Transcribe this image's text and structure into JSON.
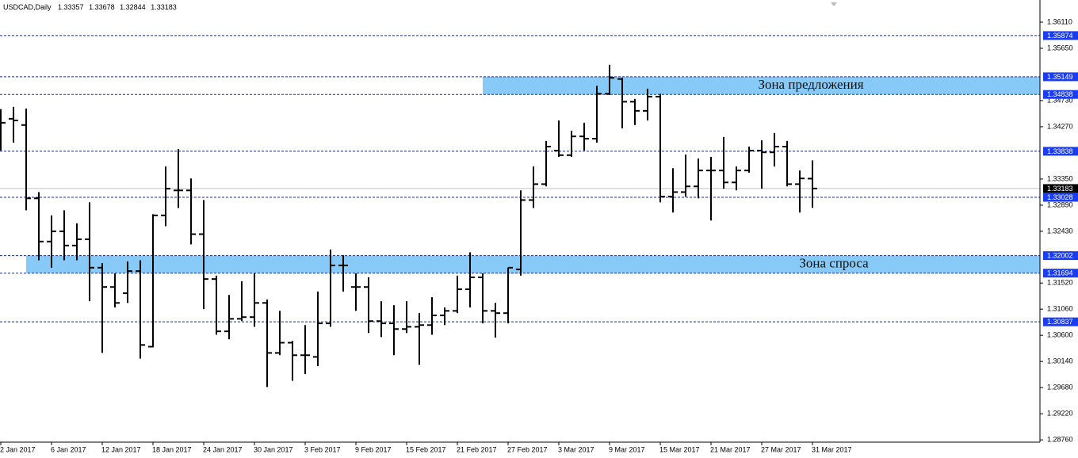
{
  "chart_data": {
    "type": "ohlc",
    "title": "USDCAD,Daily",
    "categories": [
      "2 Jan 2017",
      null,
      null,
      null,
      "6 Jan 2017",
      null,
      null,
      null,
      "12 Jan 2017",
      null,
      null,
      null,
      "18 Jan 2017",
      null,
      null,
      null,
      "24 Jan 2017",
      null,
      null,
      null,
      "30 Jan 2017",
      null,
      null,
      null,
      "3 Feb 2017",
      null,
      null,
      null,
      "9 Feb 2017",
      null,
      null,
      null,
      "15 Feb 2017",
      null,
      null,
      null,
      "21 Feb 2017",
      null,
      null,
      null,
      "27 Feb 2017",
      null,
      null,
      null,
      "3 Mar 2017",
      null,
      null,
      null,
      "9 Mar 2017",
      null,
      null,
      null,
      "15 Mar 2017",
      null,
      null,
      null,
      "21 Mar 2017",
      null,
      null,
      null,
      "27 Mar 2017",
      null,
      null,
      null,
      "31 Mar 2017"
    ],
    "open": [
      1.3438,
      1.3441,
      1.343,
      1.3301,
      1.3225,
      1.3243,
      1.3218,
      1.3229,
      1.3179,
      1.3145,
      1.3134,
      1.3173,
      1.304,
      1.3271,
      1.3315,
      1.3315,
      1.3238,
      1.3159,
      1.3067,
      1.3089,
      1.3092,
      1.3117,
      1.3029,
      1.3047,
      1.3025,
      1.3022,
      1.3081,
      1.3183,
      1.3145,
      1.3145,
      1.3085,
      1.3081,
      1.3071,
      1.3075,
      1.3078,
      1.3095,
      1.3103,
      1.3141,
      1.3162,
      1.3103,
      1.3099,
      1.3176,
      1.3298,
      1.3326,
      1.3385,
      1.3377,
      1.341,
      1.3406,
      1.3485,
      1.3511,
      1.3471,
      1.3455,
      1.348,
      1.3304,
      1.3312,
      1.3322,
      1.335,
      1.335,
      1.3329,
      1.335,
      1.3385,
      1.3382,
      1.3392,
      1.3326,
      1.33357
    ],
    "high": [
      1.3458,
      1.3462,
      1.3459,
      1.3312,
      1.3271,
      1.328,
      1.3257,
      1.3294,
      1.3187,
      1.3169,
      1.319,
      1.3192,
      1.3273,
      1.3357,
      1.3388,
      1.3336,
      1.3298,
      1.3165,
      1.3131,
      1.3155,
      1.3169,
      1.3123,
      1.3103,
      1.305,
      1.3078,
      1.3137,
      1.3211,
      1.3201,
      1.3169,
      1.3162,
      1.312,
      1.3113,
      1.312,
      1.3099,
      1.3127,
      1.3109,
      1.3165,
      1.3206,
      1.3169,
      1.3117,
      1.3179,
      1.3315,
      1.3357,
      1.3402,
      1.3438,
      1.342,
      1.3434,
      1.3499,
      1.3536,
      1.3513,
      1.3476,
      1.3494,
      1.3485,
      1.3354,
      1.3378,
      1.3371,
      1.3374,
      1.3409,
      1.3357,
      1.3392,
      1.3403,
      1.3416,
      1.3402,
      1.335,
      1.33678
    ],
    "low": [
      1.3385,
      1.3399,
      1.328,
      1.3192,
      1.3179,
      1.3192,
      1.3192,
      1.312,
      1.3029,
      1.3109,
      1.3117,
      1.3019,
      1.3039,
      1.3252,
      1.3284,
      1.322,
      1.3106,
      1.3061,
      1.3053,
      1.3085,
      1.3075,
      1.2969,
      1.3025,
      1.298,
      1.2992,
      1.3006,
      1.3075,
      1.3137,
      1.3103,
      1.3064,
      1.3057,
      1.3025,
      1.3064,
      1.3008,
      1.3061,
      1.3078,
      1.3099,
      1.3109,
      1.3081,
      1.3056,
      1.3081,
      1.3165,
      1.3284,
      1.3322,
      1.3374,
      1.3374,
      1.3385,
      1.3399,
      1.3483,
      1.3424,
      1.343,
      1.3438,
      1.3294,
      1.3276,
      1.3304,
      1.3301,
      1.3262,
      1.3318,
      1.3315,
      1.3346,
      1.3318,
      1.3357,
      1.3322,
      1.3276,
      1.32844
    ],
    "close": [
      1.3434,
      1.3438,
      1.3301,
      1.3225,
      1.3243,
      1.3218,
      1.3229,
      1.3179,
      1.3145,
      1.3117,
      1.3173,
      1.3043,
      1.3271,
      1.3318,
      1.3315,
      1.3238,
      1.3159,
      1.3067,
      1.3089,
      1.3092,
      1.3117,
      1.3029,
      1.3047,
      1.3025,
      1.3025,
      1.3081,
      1.3183,
      1.3183,
      1.3145,
      1.3085,
      1.3081,
      1.3071,
      1.3075,
      1.3078,
      1.3095,
      1.3103,
      1.3141,
      1.3162,
      1.3103,
      1.3099,
      1.3179,
      1.3298,
      1.3326,
      1.3392,
      1.3377,
      1.341,
      1.3406,
      1.3485,
      1.3513,
      1.3471,
      1.3455,
      1.348,
      1.3304,
      1.3312,
      1.3322,
      1.335,
      1.335,
      1.3329,
      1.335,
      1.3385,
      1.3382,
      1.3392,
      1.3326,
      1.3336,
      1.33183
    ],
    "color": "#000000",
    "ylim": [
      1.2872,
      1.365
    ],
    "yticks": [
      {
        "value": 1.3611,
        "label": "1.36110"
      },
      {
        "value": 1.3565,
        "label": "1.35650"
      },
      {
        "value": 1.3473,
        "label": "1.34730"
      },
      {
        "value": 1.3427,
        "label": "1.34270"
      },
      {
        "value": 1.3335,
        "label": "1.33350"
      },
      {
        "value": 1.3289,
        "label": "1.32890"
      },
      {
        "value": 1.3243,
        "label": "1.32430"
      },
      {
        "value": 1.3152,
        "label": "1.31520"
      },
      {
        "value": 1.3106,
        "label": "1.31060"
      },
      {
        "value": 1.306,
        "label": "1.30600"
      },
      {
        "value": 1.3014,
        "label": "1.30140"
      },
      {
        "value": 1.2968,
        "label": "1.29680"
      },
      {
        "value": 1.2922,
        "label": "1.29220"
      },
      {
        "value": 1.2876,
        "label": "1.28760"
      }
    ],
    "levels": [
      1.35874,
      1.35149,
      1.34838,
      1.33838,
      1.33028,
      1.32002,
      1.31694,
      1.30837
    ],
    "level_color": "#1a3cf5",
    "zones": [
      {
        "label": "Зона предложения",
        "low": 1.34838,
        "high": 1.35149
      },
      {
        "label": "Зона спроса",
        "low": 1.31694,
        "high": 1.32002
      }
    ],
    "zone_color": "#87c9f7"
  }
}
